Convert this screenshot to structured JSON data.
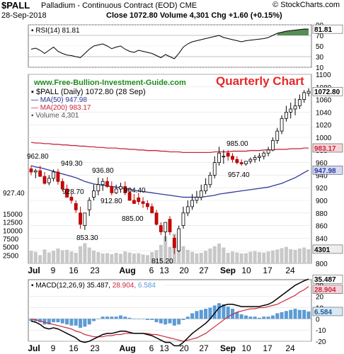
{
  "header": {
    "symbol": "$PALL",
    "name": "Palladium - Continuous Contract (EOD)",
    "exchange": "CME",
    "copyright": "© StockCharts.com",
    "date": "28-Sep-2018",
    "close_text": "Close 1072.80  Volume 4,301  Chg +1.60 (+0.15%)"
  },
  "watermark": {
    "site": "www.Free-Bullion-Investment-Guide.com",
    "title": "Quarterly Chart"
  },
  "colors": {
    "price": "#000000",
    "ma50": "#2e3a9a",
    "ma200": "#c8283c",
    "volume": "#c8c8c8",
    "macd_hist": "#5b9bd5",
    "rsi_fill": "#3a7a3a",
    "title_red": "#e8282a",
    "site_green": "#1d8a1d"
  },
  "rsi": {
    "legend": "RSI(14) 81.81",
    "current_label": "81.81",
    "levels": [
      "90",
      "70",
      "50",
      "30",
      "10"
    ]
  },
  "price_panel": {
    "legend_main": "$PALL (Daily) 1072.80 (28 Sep)",
    "legend_ma50": "MA(50) 947.98",
    "legend_ma200": "MA(200) 983.17",
    "legend_vol": "Volume 4,301",
    "price_ticks": [
      "1100",
      "1080",
      "1060",
      "1040",
      "1020",
      "1000",
      "980",
      "960",
      "940",
      "920",
      "900",
      "880",
      "860",
      "840",
      "820",
      "800"
    ],
    "volume_ticks": [
      "15000",
      "12500",
      "10000",
      "7500",
      "5000",
      "2500"
    ],
    "current_labels": {
      "price": "1072.80",
      "ma200": "983.17",
      "ma50": "947.98",
      "volume": "4301"
    },
    "annotations": [
      "962.80",
      "949.30",
      "927.40",
      "928.70",
      "936.80",
      "912.80",
      "853.30",
      "904.40",
      "885.00",
      "815.20",
      "985.00",
      "957.40"
    ]
  },
  "macd": {
    "legend_prefix": "MACD(12,26,9)",
    "macd_value": "35.487",
    "signal_value": "28.904",
    "hist_value": "6.584",
    "ticks": [
      "30",
      "20",
      "10",
      "0",
      "-10",
      "-20"
    ]
  },
  "x_axis": {
    "labels": [
      "Jul",
      "9",
      "16",
      "23",
      "Aug",
      "6",
      "13",
      "20",
      "27",
      "Sep",
      "10",
      "17",
      "24"
    ]
  },
  "chart_data": {
    "type": "bar",
    "title": "Palladium - Continuous Contract (EOD)",
    "dates": [
      "Jul 2",
      "Jul 3",
      "Jul 5",
      "Jul 6",
      "Jul 9",
      "Jul 10",
      "Jul 11",
      "Jul 12",
      "Jul 13",
      "Jul 16",
      "Jul 17",
      "Jul 18",
      "Jul 19",
      "Jul 20",
      "Jul 23",
      "Jul 24",
      "Jul 25",
      "Jul 26",
      "Jul 27",
      "Jul 30",
      "Jul 31",
      "Aug 1",
      "Aug 2",
      "Aug 3",
      "Aug 6",
      "Aug 7",
      "Aug 8",
      "Aug 9",
      "Aug 10",
      "Aug 13",
      "Aug 14",
      "Aug 15",
      "Aug 16",
      "Aug 17",
      "Aug 20",
      "Aug 21",
      "Aug 22",
      "Aug 23",
      "Aug 24",
      "Aug 27",
      "Aug 28",
      "Aug 29",
      "Aug 30",
      "Aug 31",
      "Sep 4",
      "Sep 5",
      "Sep 6",
      "Sep 7",
      "Sep 10",
      "Sep 11",
      "Sep 12",
      "Sep 13",
      "Sep 14",
      "Sep 17",
      "Sep 18",
      "Sep 19",
      "Sep 20",
      "Sep 21",
      "Sep 24",
      "Sep 25",
      "Sep 26",
      "Sep 27",
      "Sep 28"
    ],
    "open": [
      950,
      945,
      947,
      938,
      928,
      935,
      945,
      930,
      918,
      905,
      895,
      880,
      860,
      885,
      905,
      915,
      925,
      930,
      922,
      912,
      918,
      922,
      912,
      900,
      904,
      898,
      895,
      890,
      880,
      860,
      850,
      870,
      840,
      820,
      860,
      880,
      890,
      900,
      905,
      915,
      925,
      940,
      960,
      970,
      975,
      970,
      965,
      960,
      958,
      962,
      965,
      968,
      970,
      975,
      980,
      995,
      1010,
      1030,
      1040,
      1045,
      1050,
      1060,
      1070
    ],
    "high": [
      955,
      950,
      955,
      945,
      940,
      949,
      950,
      935,
      925,
      910,
      900,
      890,
      880,
      905,
      925,
      936,
      935,
      937,
      930,
      925,
      928,
      930,
      918,
      910,
      912,
      905,
      900,
      895,
      885,
      865,
      865,
      875,
      845,
      860,
      890,
      900,
      910,
      915,
      925,
      935,
      945,
      970,
      985,
      980,
      980,
      975,
      970,
      965,
      962,
      968,
      972,
      975,
      978,
      985,
      1000,
      1015,
      1035,
      1050,
      1055,
      1062,
      1068,
      1075,
      1078
    ],
    "low": [
      940,
      935,
      938,
      925,
      924,
      930,
      925,
      915,
      905,
      895,
      880,
      855,
      853,
      875,
      900,
      908,
      915,
      920,
      908,
      910,
      912,
      908,
      900,
      895,
      893,
      888,
      885,
      880,
      860,
      845,
      835,
      845,
      815,
      818,
      855,
      875,
      885,
      895,
      900,
      910,
      920,
      935,
      955,
      958,
      963,
      960,
      957,
      955,
      955,
      958,
      960,
      962,
      965,
      970,
      978,
      990,
      1005,
      1025,
      1030,
      1035,
      1045,
      1055,
      1065
    ],
    "close": [
      945,
      947,
      938,
      927,
      935,
      945,
      930,
      918,
      905,
      900,
      885,
      862,
      880,
      900,
      915,
      925,
      930,
      922,
      912,
      918,
      922,
      912,
      900,
      895,
      898,
      895,
      890,
      880,
      862,
      850,
      865,
      850,
      825,
      855,
      880,
      890,
      900,
      905,
      915,
      925,
      940,
      960,
      975,
      970,
      970,
      965,
      960,
      958,
      962,
      965,
      968,
      970,
      975,
      980,
      995,
      1010,
      1030,
      1040,
      1045,
      1050,
      1060,
      1071,
      1073
    ],
    "ma50": [
      955,
      953,
      952,
      950,
      948,
      946,
      944,
      942,
      940,
      938,
      936,
      933,
      930,
      928,
      926,
      925,
      924,
      923,
      922,
      921,
      920,
      919,
      918,
      916,
      915,
      914,
      913,
      912,
      911,
      910,
      909,
      908,
      907,
      906,
      905,
      905,
      905,
      905,
      905,
      906,
      907,
      908,
      910,
      911,
      912,
      913,
      914,
      915,
      916,
      917,
      918,
      919,
      920,
      921,
      923,
      925,
      927,
      930,
      933,
      936,
      940,
      944,
      948
    ],
    "ma200": [
      992,
      991,
      991,
      990,
      990,
      989,
      989,
      988,
      988,
      987,
      987,
      986,
      986,
      985,
      985,
      984,
      984,
      983,
      983,
      983,
      982,
      982,
      981,
      981,
      980,
      980,
      979,
      979,
      979,
      978,
      978,
      977,
      977,
      977,
      976,
      976,
      976,
      976,
      976,
      976,
      976,
      977,
      977,
      977,
      977,
      978,
      978,
      978,
      978,
      979,
      979,
      979,
      980,
      980,
      980,
      981,
      981,
      981,
      982,
      982,
      982,
      983,
      983
    ],
    "volume": [
      3800,
      3500,
      2500,
      4200,
      3300,
      3800,
      4500,
      4000,
      4100,
      3600,
      3200,
      5200,
      6100,
      4800,
      3900,
      3400,
      3000,
      3100,
      2800,
      3200,
      2900,
      3600,
      3300,
      3000,
      3100,
      2700,
      2500,
      3400,
      4000,
      5600,
      8200,
      5000,
      9000,
      7000,
      5200,
      4100,
      3500,
      3000,
      3200,
      3800,
      4500,
      5200,
      6000,
      4800,
      3200,
      3600,
      3300,
      3000,
      3100,
      3500,
      3700,
      3400,
      3300,
      3600,
      3900,
      4200,
      4600,
      5000,
      4300,
      4100,
      4500,
      4800,
      4301
    ],
    "macd": [
      -2,
      -3,
      -5,
      -8,
      -9,
      -8,
      -9,
      -11,
      -13,
      -15,
      -17,
      -20,
      -21,
      -20,
      -18,
      -16,
      -14,
      -13,
      -13,
      -12,
      -11,
      -11,
      -12,
      -13,
      -13,
      -13,
      -14,
      -15,
      -17,
      -19,
      -21,
      -21,
      -24,
      -24,
      -21,
      -17,
      -13,
      -10,
      -7,
      -4,
      0,
      5,
      10,
      12,
      13,
      13,
      12,
      11,
      11,
      11,
      11,
      11,
      12,
      13,
      15,
      18,
      21,
      24,
      27,
      30,
      32,
      34,
      35.5
    ],
    "signal": [
      0,
      -1,
      -2,
      -3,
      -4,
      -5,
      -6,
      -7,
      -8,
      -9,
      -11,
      -12,
      -14,
      -15,
      -16,
      -16,
      -16,
      -15,
      -15,
      -14,
      -14,
      -13,
      -13,
      -13,
      -13,
      -13,
      -13,
      -14,
      -14,
      -15,
      -16,
      -17,
      -18,
      -19,
      -20,
      -19,
      -18,
      -17,
      -15,
      -13,
      -10,
      -7,
      -4,
      -1,
      2,
      4,
      6,
      7,
      8,
      9,
      9,
      10,
      10,
      11,
      12,
      13,
      15,
      17,
      19,
      21,
      24,
      26,
      28.9
    ],
    "rsi": [
      44,
      46,
      42,
      36,
      42,
      48,
      40,
      36,
      33,
      32,
      30,
      28,
      36,
      44,
      50,
      52,
      54,
      50,
      45,
      48,
      50,
      44,
      40,
      38,
      42,
      40,
      38,
      36,
      32,
      28,
      34,
      30,
      26,
      36,
      48,
      54,
      58,
      60,
      62,
      64,
      66,
      68,
      70,
      66,
      64,
      62,
      60,
      58,
      60,
      61,
      62,
      63,
      64,
      66,
      70,
      74,
      76,
      78,
      79,
      80,
      81,
      82,
      81.81
    ],
    "ylim": [
      800,
      1100
    ],
    "volume_ylim": [
      0,
      15000
    ],
    "rsi_ylim": [
      10,
      90
    ],
    "macd_ylim": [
      -20,
      35
    ]
  }
}
